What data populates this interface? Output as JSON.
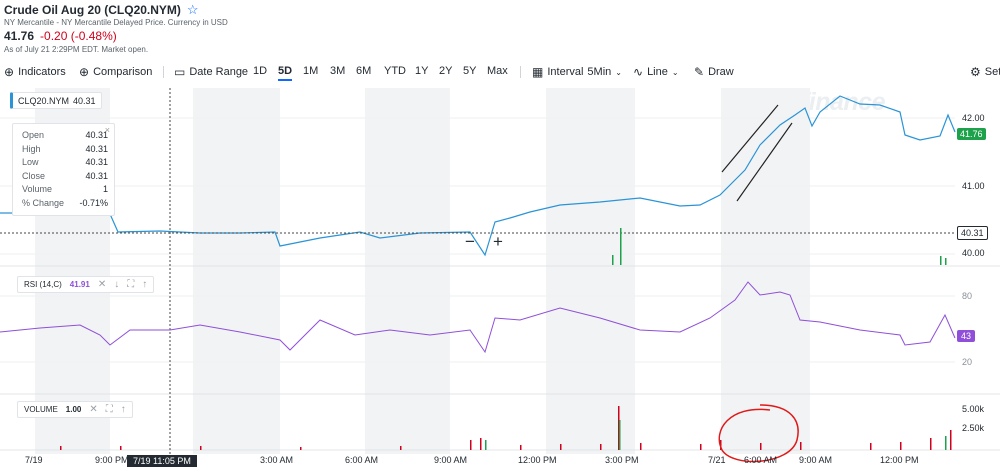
{
  "header": {
    "title": "Crude Oil Aug 20 (CLQ20.NYM)",
    "exchange": "NY Mercantile - NY Mercantile Delayed Price. Currency in USD",
    "price": "41.76",
    "change": "-0.20 (-0.48%)",
    "asof": "As of July 21 2:29PM EDT. Market open."
  },
  "toolbar": {
    "indicators": "Indicators",
    "comparison": "Comparison",
    "date_range": "Date Range",
    "ranges": [
      "1D",
      "5D",
      "1M",
      "3M",
      "6M",
      "YTD",
      "1Y",
      "2Y",
      "5Y",
      "Max"
    ],
    "active_range": "5D",
    "interval_label": "Interval",
    "interval_value": "5Min",
    "chart_type": "Line",
    "draw": "Draw",
    "settings": "Set"
  },
  "main_chart": {
    "symbol": "CLQ20.NYM",
    "symbol_value": "40.31",
    "watermark": "yahoo!finance",
    "y_ticks": [
      "42.00",
      "41.00",
      "40.00"
    ],
    "current_price": "41.76",
    "crosshair_price": "40.31",
    "ohlc": {
      "open_label": "Open",
      "open": "40.31",
      "high_label": "High",
      "high": "40.31",
      "low_label": "Low",
      "low": "40.31",
      "close_label": "Close",
      "close": "40.31",
      "volume_label": "Volume",
      "volume": "1",
      "change_label": "% Change",
      "change": "-0.71%"
    },
    "zoom_out": "−",
    "zoom_in": "+"
  },
  "rsi": {
    "label": "RSI (14,C)",
    "value": "41.91",
    "y_ticks": [
      "80",
      "20"
    ],
    "current": "43"
  },
  "volume": {
    "label": "VOLUME",
    "value": "1.00",
    "y_ticks": [
      "5.00k",
      "2.50k"
    ]
  },
  "x_axis": {
    "labels": [
      "7/19",
      "9:00 PM",
      "3:00 AM",
      "6:00 AM",
      "9:00 AM",
      "12:00 PM",
      "3:00 PM",
      "7/21",
      "6:00 AM",
      "9:00 AM",
      "12:00 PM"
    ],
    "crosshair_time": "7/19 11:05 PM"
  },
  "colors": {
    "price_line": "#2a94d6",
    "rsi_line": "#8f4fd8",
    "current_badge": "#1ea14b",
    "negative": "#d0021b",
    "accent": "#0f69ff"
  },
  "icons": [
    "star-icon",
    "plus-circle-icon",
    "calendar-icon",
    "candle-icon",
    "line-chart-icon",
    "pencil-icon",
    "gear-icon",
    "close-icon",
    "arrow-down-icon",
    "expand-icon",
    "arrow-up-icon"
  ]
}
